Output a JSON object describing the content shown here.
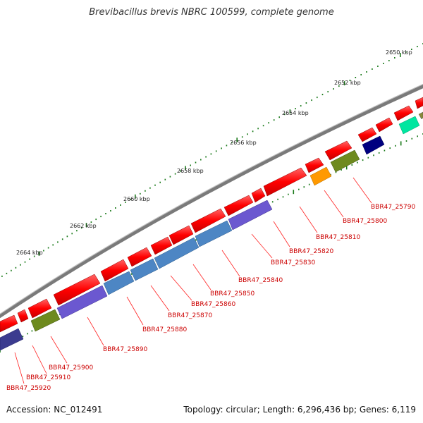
{
  "title": "Brevibacillus brevis NBRC 100599, complete genome",
  "footer": {
    "accession": "Accession: NC_012491",
    "summary": "Topology: circular; Length: 6,296,436 bp; Genes: 6,119"
  },
  "kbp_labels": [
    "2650 kbp",
    "2652 kbp",
    "2654 kbp",
    "2656 kbp",
    "2658 kbp",
    "2660 kbp",
    "2662 kbp",
    "2664 kbp"
  ],
  "gene_labels": [
    "BBR47_25790",
    "BBR47_25800",
    "BBR47_25810",
    "BBR47_25820",
    "BBR47_25830",
    "BBR47_25840",
    "BBR47_25850",
    "BBR47_25860",
    "BBR47_25870",
    "BBR47_25880",
    "BBR47_25890",
    "BBR47_25900",
    "BBR47_25910",
    "BBR47_25920"
  ],
  "colors": {
    "forward_gene": "#ff0000",
    "label_text": "#cc0000",
    "leader_line": "#ff0000",
    "backbone": "#808080",
    "tick": "#1a7a1a",
    "blue_gene": "#4d86c4",
    "purple_gene": "#6b58d0",
    "olive_gene": "#6e8a1e",
    "orange_gene": "#ff9900",
    "navy_gene": "#000080",
    "teal_gene": "#00e6a0",
    "slate_gene": "#3b3b8f"
  }
}
